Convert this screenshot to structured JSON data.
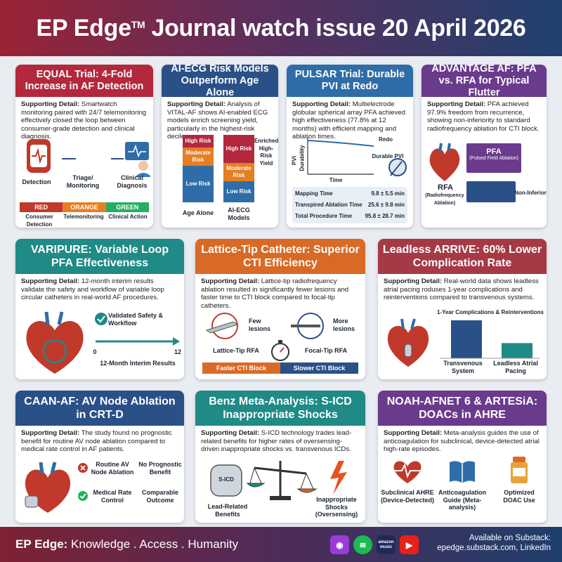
{
  "header": {
    "brand": "EP Edge",
    "tm": "TM",
    "title_rest": " Journal watch issue 20 April 2026"
  },
  "colors": {
    "red": "#b3283d",
    "navy": "#2a5088",
    "blue": "#2e6da8",
    "purple": "#6a3a8c",
    "teal": "#1f8a86",
    "orange": "#d96a26",
    "maroon": "#a53a46"
  },
  "cards": {
    "equal": {
      "title": "EQUAL Trial: 4-Fold Increase in AF Detection",
      "sd_label": "Supporting Detail:",
      "sd_text": " Smartwatch monitoring paired with 24/7 telemonitoring effectively closed the loop between consumer-grade detection and clinical diagnosis.",
      "steps": [
        "Detection",
        "Triage/ Monitoring",
        "Clinical Diagnosis"
      ],
      "bar": [
        "RED",
        "ORANGE",
        "GREEN"
      ],
      "bar_sub": [
        "Consumer Detection",
        "Telemonitoring",
        "Clinical Action"
      ]
    },
    "aiecg": {
      "title": "AI-ECG Risk Models Outperform Age Alone",
      "sd_label": "Supporting Detail:",
      "sd_text": " Analysis of VITAL-AF shows AI-enabled ECG models enrich screening yield, particularly in the highest-risk deciles.",
      "bar1": {
        "high": "High Risk",
        "mod": "Moderate Risk",
        "low": "Low Risk",
        "label": "Age Alone"
      },
      "bar2": {
        "high": "High Risk",
        "mod": "Moderate Risk",
        "low": "Low Risk",
        "label": "AI-ECG Models"
      },
      "note": "Enriched High-Risk Yield"
    },
    "pulsar": {
      "title": "PULSAR Trial: Durable PVI at Redo",
      "sd_label": "Supporting Detail:",
      "sd_text": " Multielectrode globular spherical array PFA achieved high effectiveness (77.8% at 12 months) with efficient mapping and ablation times.",
      "chart_y": "PVI Durability",
      "chart_x": "Time",
      "redo": "Redo",
      "durable": "Durable PVI",
      "rows": [
        {
          "label": "Mapping Time",
          "value": "9.8 ± 5.5 min"
        },
        {
          "label": "Transpired Ablation Time",
          "value": "25.6 ± 9.8 min"
        },
        {
          "label": "Total Procedure Time",
          "value": "95.8 ± 28.7 min"
        }
      ]
    },
    "advantage": {
      "title": "ADVANTAGE AF: PFA vs. RFA for Typical Flutter",
      "sd_label": "Supporting Detail:",
      "sd_text": " PFA achieved 97.9% freedom from recurrence, showing non-inferiority to standard radiofrequency ablation for CTI block.",
      "pfa": "PFA",
      "pfa_sub": "(Pulsed Field Ablation)",
      "rfa": "RFA",
      "rfa_sub": "(Radiofrequency Ablation)",
      "noninf": "Non-Inferior"
    },
    "varipure": {
      "title": "VARIPURE: Variable Loop PFA Effectiveness",
      "sd_label": "Supporting Detail:",
      "sd_text": " 12-month interim results validate the safety and workflow of variable loop circular catheters in real-world AF procedures.",
      "validated": "Validated Safety & Workflow",
      "axis_start": "0",
      "axis_end": "12",
      "axis_label": "12-Month Interim Results"
    },
    "lattice": {
      "title": "Lattice-Tip Catheter: Superior CTI Efficiency",
      "sd_label": "Supporting Detail:",
      "sd_text": " Lattice-tip radiofrequency ablation resulted in significantly fewer lesions and faster time to CTI block compared to focal-tip catheters.",
      "few": "Few lesions",
      "more": "More lesions",
      "lattice_rfa": "Lattice-Tip RFA",
      "focal_rfa": "Focal-Tip RFA",
      "faster": "Faster CTI Block",
      "slower": "Slower CTI Block"
    },
    "leadless": {
      "title": "Leadless ARRIVE: 60% Lower Complication Rate",
      "sd_label": "Supporting Detail:",
      "sd_text": " Real-world data shows leadless atrial pacing roduses 1-year complications and reinterventions compared to transvenous systems.",
      "chart_title": "1-Year Complications & Reinterventions",
      "chart_data": {
        "type": "bar",
        "categories": [
          "Transvenous System",
          "Leadless Atrial Pacing"
        ],
        "values": [
          1.0,
          0.4
        ]
      }
    },
    "caan": {
      "title": "CAAN-AF: AV Node Ablation in CRT-D",
      "sd_label": "Supporting Detail:",
      "sd_text": " The study found no prognostic benefit for routine AV node ablation compared to medical rate control in AF patients.",
      "routine": "Routine AV Node Ablation",
      "no_benefit": "No Prognostic Benefit",
      "medical": "Medical Rate Control",
      "comparable": "Comparable Outcome"
    },
    "benz": {
      "title": "Benz Meta-Analysis: S-ICD Inappropriate Shocks",
      "sd_label": "Supporting Detail:",
      "sd_text": " S-ICD technology trades lead-related benefits for higher rates of oversensing-driven inappropriate shocks vs. transvenous ICDs.",
      "sicd": "S-ICD",
      "lead_benefits": "Lead-Related Benefits",
      "shocks": "Inappropriate Shocks (Oversensing)"
    },
    "noah": {
      "title": "NOAH-AFNET 6 & ARTESiA: DOACs in AHRE",
      "sd_label": "Supporting Detail:",
      "sd_text": " Meta-analysis guides the use of anticoagulation for subclinical, device-detected atrial high-rate episodes.",
      "items": [
        "Subclinical AHRE (Device-Detected)",
        "Anticoagulation Guide (Meta-analysis)",
        "Optimized DOAC Use"
      ]
    }
  },
  "footer": {
    "brand": "EP Edge:",
    "tagline": " Knowledge . Access . Humanity",
    "available": "Available on Substack:",
    "links": "epedge.substack.com, LinkedIn",
    "icons": [
      "podcast-icon",
      "spotify-icon",
      "amazon-music-icon",
      "youtube-icon"
    ],
    "amazon_text": "amazon music"
  }
}
